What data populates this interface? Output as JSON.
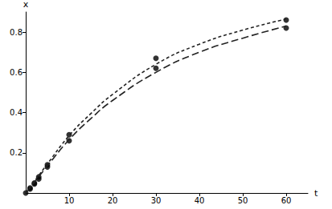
{
  "chart_data": {
    "type": "line",
    "x_label": "t",
    "y_label": "x",
    "xlim": [
      0,
      65
    ],
    "xticks": [
      10,
      20,
      30,
      40,
      50,
      60
    ],
    "ylim": [
      0,
      0.9
    ],
    "yticks": [
      0.2,
      0.4,
      0.6,
      0.8
    ],
    "grid": false,
    "series": [
      {
        "type": "scatter",
        "color": "#000000",
        "marker": "circle",
        "x": [
          0,
          1,
          1,
          2,
          2,
          3,
          3,
          5,
          5,
          10,
          10,
          30,
          30,
          60,
          60
        ],
        "values": [
          0,
          0.02,
          0.025,
          0.045,
          0.05,
          0.07,
          0.08,
          0.13,
          0.14,
          0.26,
          0.29,
          0.62,
          0.67,
          0.82,
          0.86
        ]
      },
      {
        "type": "line",
        "color": "#222222",
        "line_style": "dashed",
        "x": [
          0,
          2,
          5,
          10,
          15,
          20,
          30,
          40,
          50,
          60
        ],
        "values": [
          0,
          0.058,
          0.145,
          0.285,
          0.395,
          0.49,
          0.64,
          0.74,
          0.81,
          0.865
        ]
      },
      {
        "type": "line",
        "color": "#222222",
        "line_style": "long-dashed",
        "x": [
          0,
          2,
          5,
          10,
          15,
          20,
          30,
          40,
          50,
          60
        ],
        "values": [
          0,
          0.054,
          0.135,
          0.265,
          0.37,
          0.46,
          0.6,
          0.7,
          0.77,
          0.83
        ]
      }
    ]
  }
}
